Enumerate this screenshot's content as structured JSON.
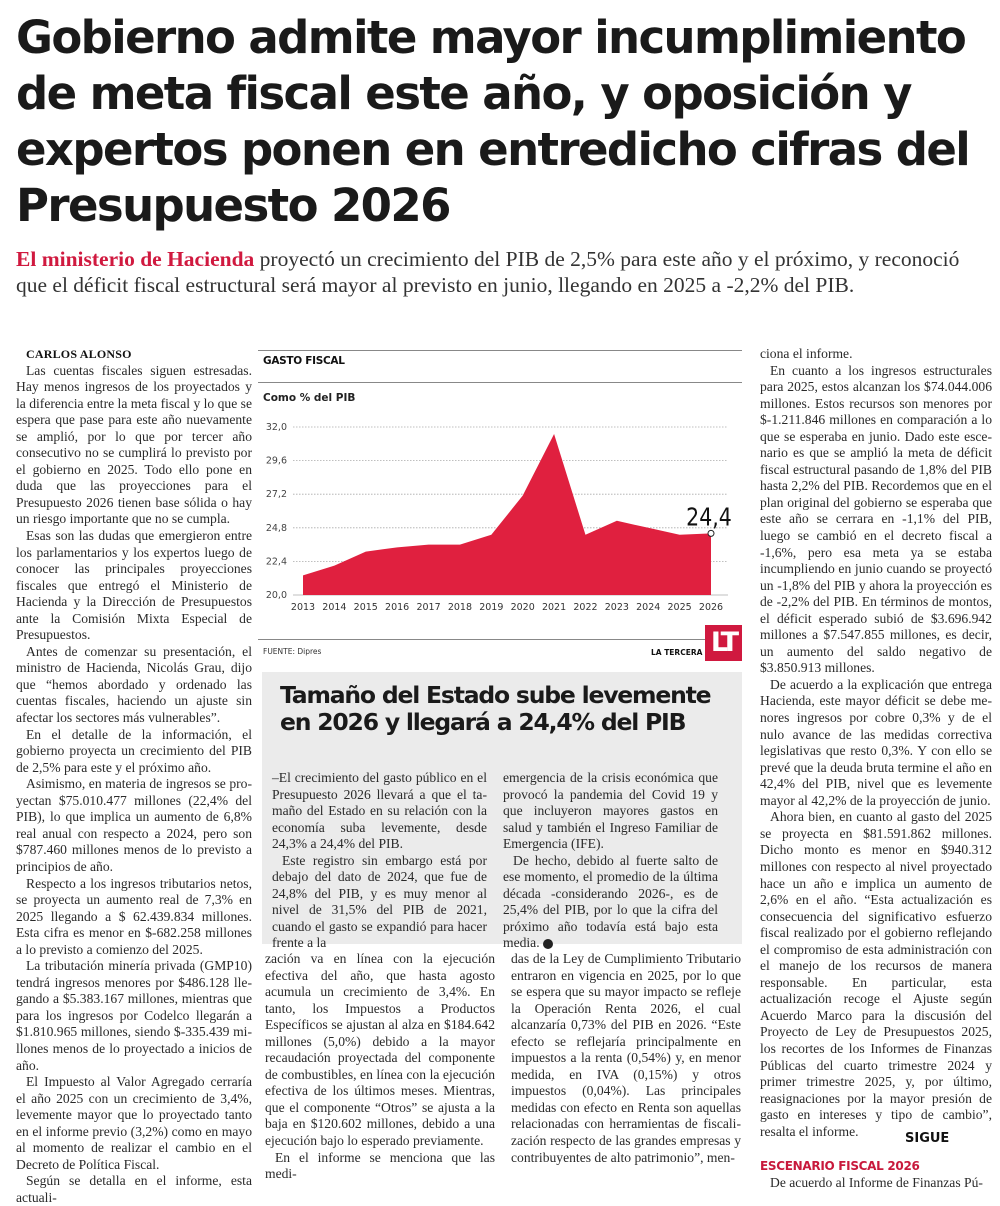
{
  "headline": "Gobierno admite mayor incumplimiento de meta fiscal este año, y oposición y expertos ponen en entredicho cifras del Presupuesto 2026",
  "deck": {
    "lead": "El ministerio de Hacienda",
    "rest": " proyectó un crecimiento del PIB de 2,5% para este año y el próximo, y reconoció que el déficit fiscal estructural será mayor al previsto en junio, llegando en 2025 a -2,2% del PIB."
  },
  "byline": "CARLOS ALONSO",
  "col1": [
    "Las cuentas fiscales siguen estresadas. Hay menos ingresos de los proyectados y la dife­rencia entre la meta fiscal y lo que se espera que pase para este año nuevamente se am­plió, por lo que por tercer año consecutivo no se cumplirá lo previsto por el gobierno en 2025. Todo ello pone en duda que las proyec­ciones para el Presupuesto 2026 tienen base sólida o hay un riesgo importante que no se cumpla.",
    "Esas son las dudas que emergieron entre los parlamentarios y los expertos luego de conocer las principales proyecciones fiscales que entregó el Ministerio de Hacienda y la Dirección de Presupuestos ante la Comisión Mixta Especial de Presupuestos.",
    "Antes de comenzar su presentación, el mi­nistro de Hacienda, Nicolás Grau, dijo que “hemos abordado y ordenado las cuentas fiscales, haciendo un ajuste sin afectar los sectores más vulnerables”.",
    "En el detalle de la información, el gobier­no proyecta un crecimiento del PIB de 2,5% para este y el próximo año.",
    "Asimismo, en materia de ingresos se pro­yectan $75.010.477 millones (22,4% del PIB), lo que implica un aumento de 6,8% real anual con respecto a 2024, pero son $787.460 millones menos de lo previsto a principios de año.",
    "Respecto a los ingresos tributarios netos, se proyecta un aumento real de 7,3% en 2025 llegando a $ 62.439.834 millones. Esta cifra es menor en $-682.258 millones a lo previsto a comienzo del 2025.",
    "La tributación minería privada (GMP10) tendrá ingresos menores por $486.128 lle­gando a $5.383.167 millones, mientras que para los ingresos por Codelco llegarán a $1.810.965 millones, siendo $-335.439 mi­llones menos de lo proyectado a inicios de año.",
    "El Impuesto al Valor Agregado cerraría el año 2025 con un crecimiento de 3,4%, leve­mente mayor que lo proyectado tanto en el informe previo (3,2%) como en mayo al mo­mento de realizar el cambio en el Decreto de Política Fiscal.",
    "Según se detalla en el informe, esta actuali-"
  ],
  "chart": {
    "title": "GASTO FISCAL",
    "subtitle": "Como % del PIB",
    "source": "FUENTE: Dipres",
    "brand": "LA TERCERA",
    "logo": "LT",
    "accent": "#e0203f"
  },
  "chart_data": {
    "type": "area",
    "title": "GASTO FISCAL",
    "subtitle": "Como % del PIB",
    "x": [
      2013,
      2014,
      2015,
      2016,
      2017,
      2018,
      2019,
      2020,
      2021,
      2022,
      2023,
      2024,
      2025,
      2026
    ],
    "values": [
      21.4,
      22.1,
      23.1,
      23.4,
      23.6,
      23.6,
      24.3,
      27.1,
      31.5,
      24.3,
      25.3,
      24.8,
      24.3,
      24.4
    ],
    "yticks": [
      "20,0",
      "22,4",
      "24,8",
      "27,2",
      "29,6",
      "32,0"
    ],
    "ylim": [
      20.0,
      32.0
    ],
    "annotation": "24,4",
    "grid": true,
    "legend": "none",
    "source": "FUENTE: Dipres"
  },
  "box": {
    "title": "Tamaño del Estado sube levemente en 2026 y llegará a 24,4% del PIB",
    "col1": [
      "–El crecimiento del gasto público en el Presupuesto 2026 llevará a que el ta­maño del Estado en su relación con la economía suba levemente, desde 24,3% a 24,4% del PIB.",
      "Este registro sin embargo está por de­bajo del dato de 2024, que fue de 24,8% del PIB, y es muy menor al nivel de 31,5% del PIB de 2021, cuando el gas­to se expandió para hacer frente a la"
    ],
    "col2": [
      "emergencia de la crisis económica que provocó la pandemia del Covid 19 y que incluyeron mayores gastos en salud y también el Ingreso Familiar de Emer­gencia (IFE).",
      "De hecho, debido al fuerte salto de ese momento, el promedio de la última déca­da -considerando 2026-, es de 25,4% del PIB, por lo que la cifra del próximo año todavía está bajo esta media."
    ]
  },
  "col2a": [
    "zación va en línea con la ejecución efectiva del año, que hasta agosto acumula un cre­cimiento de 3,4%. En tanto, los Impuestos a Productos Específicos se ajustan al alza en $184.642 millones (5,0%) debido a la mayor recaudación proyectada del componente de combustibles, en línea con la ejecución efectiva de los últimos meses. Mientras, que el componente “Otros” se ajusta a la baja en $120.602 millones, debido a una ejecución bajo lo esperado previamente.",
    "En el informe se menciona que las medi-"
  ],
  "col2b": [
    "das de la Ley de Cumplimiento Tributario entraron en vigencia en 2025, por lo que se espera que su mayor impacto se refleje la Operación Renta 2026, el cual alcanzaría 0,73% del PIB en 2026. “Este efecto se refle­jaría principalmente en impuestos a la renta (0,54%) y, en menor medida, en IVA (0,15%) y otros impuestos (0,04%). Las principales medidas con efecto en Renta son aquellas relacionadas con herramientas de fiscali­zación respecto de las grandes empresas y contribuyentes de alto patrimonio”, men-"
  ],
  "col3": [
    "ciona el informe.",
    "En cuanto a los ingresos estructurales para 2025, estos alcanzan los $74.044.006 millones. Estos recursos son menores por $-1.211.846 millones en comparación a lo que se esperaba en junio. Dado este esce­nario es que se amplió la meta de déficit fiscal estructural pasando de 1,8% del PIB hasta 2,2% del PIB. Recordemos que en el plan original del gobierno se esperaba que este año se cerrara en -1,1% del PIB, luego se cambió en el decreto fiscal a -1,6%, pero esa meta ya se estaba incumpliendo en ju­nio cuando se proyectó un -1,8% del PIB y ahora la proyección es de -2,2% del PIB. En términos de montos, el déficit esperado subió de $3.696.942 millones a $7.547.855 millones, es decir, un aumento del saldo negativo de $3.850.913 millones.",
    "De acuerdo a la explicación que entrega Hacienda, este mayor déficit se debe me­nores ingresos por cobre 0,3% y de el nulo avance de las medidas correctiva legislati­vas que resto 0,3%. Y con ello se prevé que la deuda bruta termine el año en 42,4% del PIB, nivel que es levemente mayor al 42,2% de la proyección de junio.",
    "Ahora bien, en cuanto al gasto del 2025 se proyecta en $81.591.862 millones. Dicho monto es menor en $940.312 millones con respecto al nivel proyectado hace un año e implica un aumento de 2,6% en el año. “Esta actualización es consecuencia del sig­nificativo esfuerzo fiscal realizado por el go­bierno reflejando el compromiso de esta ad­ministración con el manejo de los recursos de manera responsable. En particular, esta actualización recoge el Ajuste según Acuer­do Marco para la discusión del Proyecto de Ley de Presupuestos 2025, los recortes de los Informes de Finanzas Públicas del cuar­to trimestre 2024 y primer trimestre 2025, y, por último, reasignaciones por la mayor presión de gasto en intereses y tipo de cam­bio”, resalta el informe."
  ],
  "section_head": "ESCENARIO FISCAL 2026",
  "col3_after": "De acuerdo al Informe de Finanzas Pú-",
  "sigue": "SIGUE"
}
